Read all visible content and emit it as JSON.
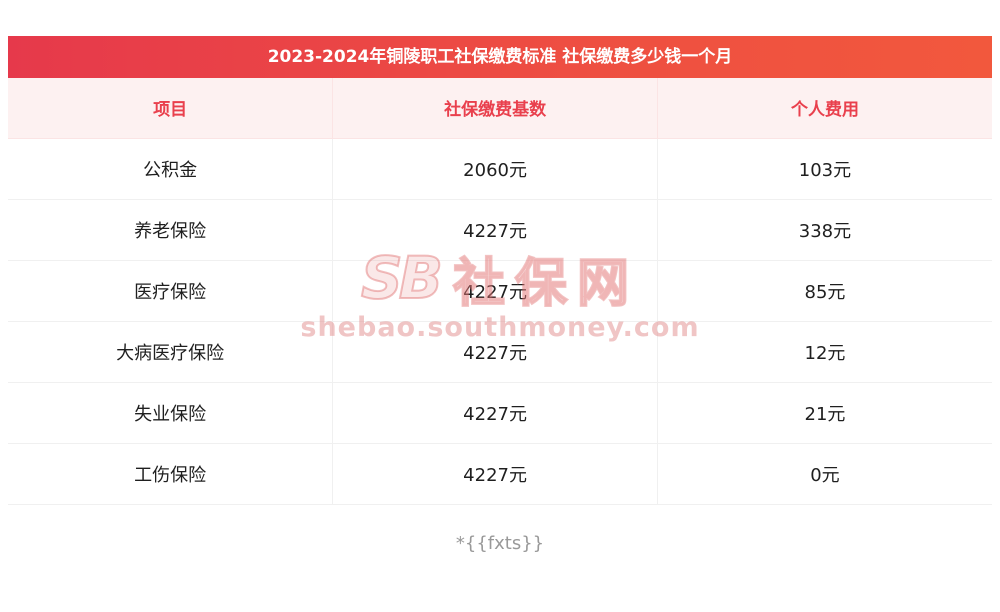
{
  "title": {
    "text": "2023-2024年铜陵职工社保缴费标准 社保缴费多少钱一个月",
    "bg_gradient_left": "#e6394b",
    "bg_gradient_right": "#f2583d",
    "text_color": "#ffffff"
  },
  "table": {
    "header": [
      "项目",
      "社保缴费基数",
      "个人费用"
    ],
    "header_text_color": "#e9404d",
    "header_bg": "#fdf1f1",
    "rows": [
      [
        "公积金",
        "2060元",
        "103元"
      ],
      [
        "养老保险",
        "4227元",
        "338元"
      ],
      [
        "医疗保险",
        "4227元",
        "85元"
      ],
      [
        "大病医疗保险",
        "4227元",
        "12元"
      ],
      [
        "失业保险",
        "4227元",
        "21元"
      ],
      [
        "工伤保险",
        "4227元",
        "0元"
      ]
    ]
  },
  "watermark": {
    "logo_text": "SB",
    "brand_text": "社保网",
    "url_text": "shebao.southmoney.com"
  },
  "footer": {
    "note": "*{{fxts}}"
  },
  "chart_data": {
    "type": "table",
    "title": "2023-2024年铜陵职工社保缴费标准 社保缴费多少钱一个月",
    "columns": [
      "项目",
      "社保缴费基数",
      "个人费用"
    ],
    "rows": [
      [
        "公积金",
        "2060元",
        "103元"
      ],
      [
        "养老保险",
        "4227元",
        "338元"
      ],
      [
        "医疗保险",
        "4227元",
        "85元"
      ],
      [
        "大病医疗保险",
        "4227元",
        "12元"
      ],
      [
        "失业保险",
        "4227元",
        "21元"
      ],
      [
        "工伤保险",
        "4227元",
        "0元"
      ]
    ]
  }
}
